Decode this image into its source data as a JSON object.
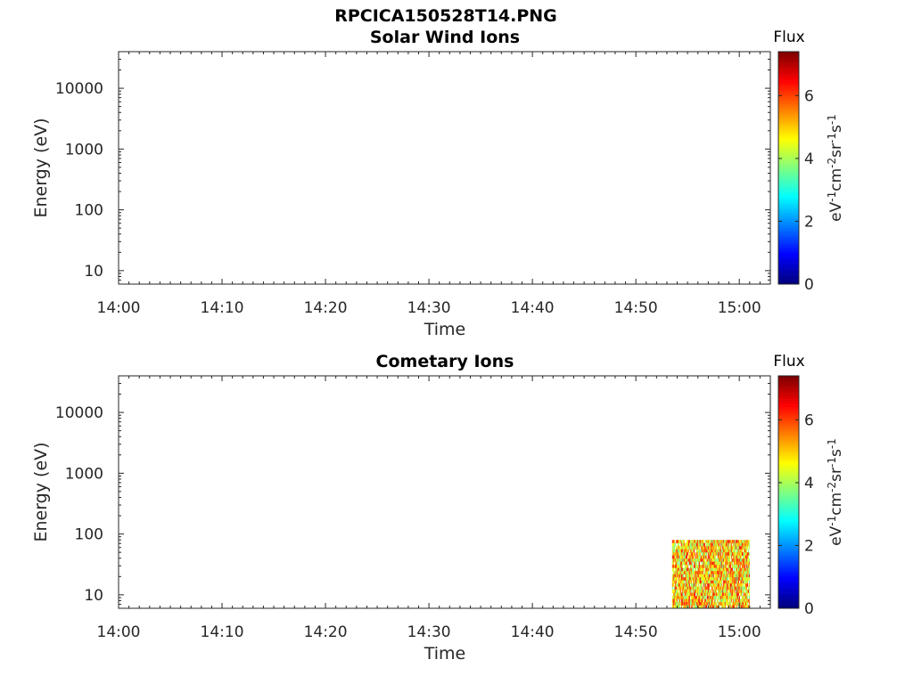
{
  "figure": {
    "title": "RPCICA150528T14.PNG"
  },
  "colorbar": {
    "title": "Flux",
    "label_base": [
      "eV",
      "cm",
      "sr",
      "s"
    ],
    "label_exp": [
      "-1",
      "-2",
      "-1",
      "-1"
    ],
    "range": [
      0,
      7.4
    ],
    "ticks": [
      "0",
      "2",
      "4",
      "6"
    ],
    "colormap": "jet"
  },
  "chart_data": [
    {
      "type": "heatmap",
      "title": "Solar Wind Ions",
      "xlabel": "Time",
      "ylabel": "Energy (eV)",
      "y_scale": "log",
      "ylim": [
        6,
        40000
      ],
      "xlim": [
        "14:00",
        "15:03"
      ],
      "x_ticks": [
        "14:00",
        "14:10",
        "14:20",
        "14:30",
        "14:40",
        "14:50",
        "15:00"
      ],
      "y_ticks": [
        "10",
        "100",
        "1000",
        "10000"
      ],
      "data": []
    },
    {
      "type": "heatmap",
      "title": "Cometary Ions",
      "xlabel": "Time",
      "ylabel": "Energy (eV)",
      "y_scale": "log",
      "ylim": [
        6,
        40000
      ],
      "xlim": [
        "14:00",
        "15:03"
      ],
      "x_ticks": [
        "14:00",
        "14:10",
        "14:20",
        "14:30",
        "14:40",
        "14:50",
        "15:00"
      ],
      "y_ticks": [
        "10",
        "100",
        "1000",
        "10000"
      ],
      "data": [
        {
          "time_range": [
            "14:53:30",
            "15:01:00"
          ],
          "energy_range_eV": [
            6,
            80
          ],
          "flux_range": [
            3.5,
            6.5
          ]
        }
      ]
    }
  ]
}
